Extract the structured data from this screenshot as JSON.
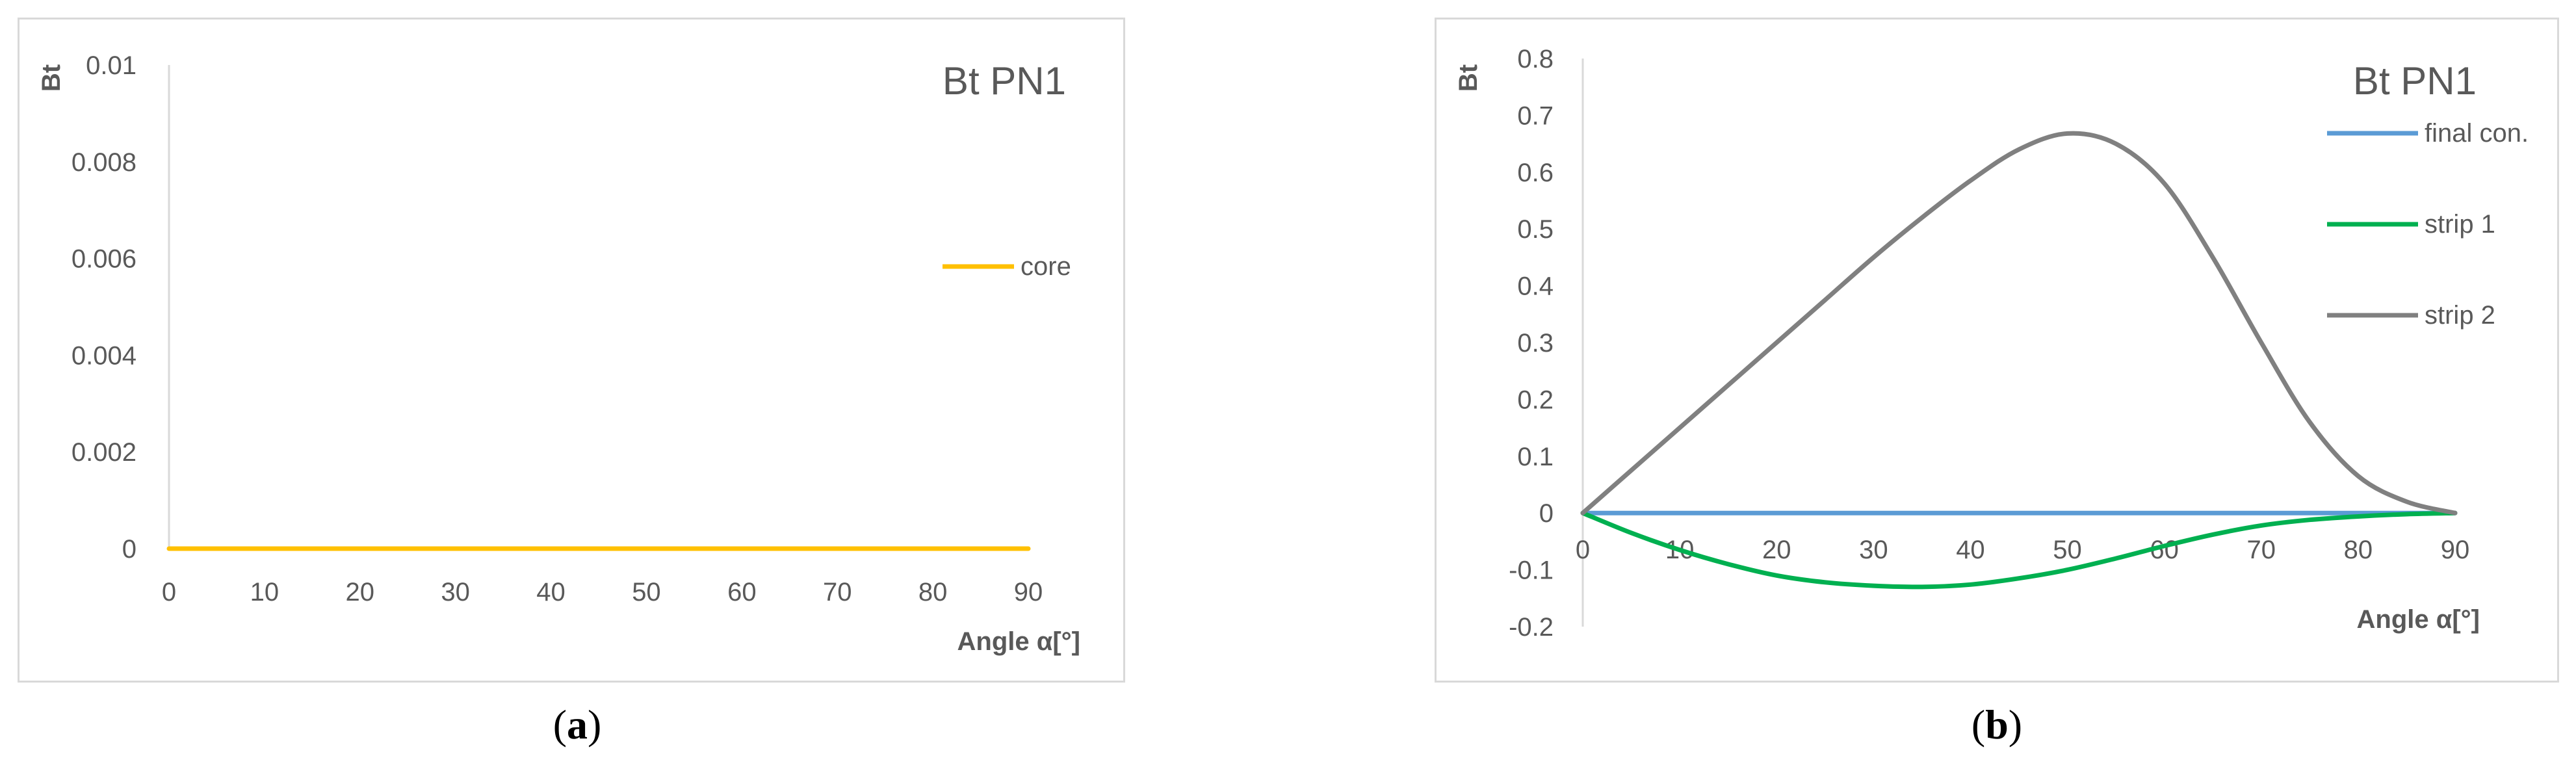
{
  "chart_data": [
    {
      "type": "line",
      "title": "Bt PN1",
      "xlabel": "Angle α[°]",
      "ylabel": "Bt",
      "xlim": [
        0,
        90
      ],
      "ylim": [
        0,
        0.01
      ],
      "x_ticks": [
        "0",
        "10",
        "20",
        "30",
        "40",
        "50",
        "60",
        "70",
        "80",
        "90"
      ],
      "y_ticks": [
        "0",
        "0.002",
        "0.004",
        "0.006",
        "0.008",
        "0.01"
      ],
      "legend": "right",
      "grid": false,
      "series": [
        {
          "name": "core",
          "color": "#ffc000",
          "x": [
            0,
            10,
            20,
            30,
            40,
            50,
            60,
            70,
            80,
            90
          ],
          "y": [
            0,
            0,
            0,
            0,
            0,
            0,
            0,
            0,
            0,
            0
          ]
        }
      ]
    },
    {
      "type": "line",
      "title": "Bt PN1",
      "xlabel": "Angle α[°]",
      "ylabel": "Bt",
      "xlim": [
        0,
        90
      ],
      "ylim": [
        -0.2,
        0.8
      ],
      "x_ticks": [
        "0",
        "10",
        "20",
        "30",
        "40",
        "50",
        "60",
        "70",
        "80",
        "90"
      ],
      "y_ticks": [
        "-0.2",
        "-0.1",
        "0",
        "0.1",
        "0.2",
        "0.3",
        "0.4",
        "0.5",
        "0.6",
        "0.7",
        "0.8"
      ],
      "legend": "right",
      "grid": false,
      "series": [
        {
          "name": "final con.",
          "color": "#5b9bd5",
          "x": [
            0,
            10,
            20,
            30,
            40,
            50,
            60,
            70,
            80,
            90
          ],
          "y": [
            0,
            0,
            0,
            0,
            0,
            0,
            0,
            0,
            0,
            0
          ]
        },
        {
          "name": "strip 1",
          "color": "#00b050",
          "x": [
            0,
            5,
            10,
            15,
            20,
            25,
            30,
            35,
            40,
            45,
            50,
            55,
            60,
            65,
            70,
            75,
            80,
            85,
            90
          ],
          "y": [
            0,
            -0.035,
            -0.065,
            -0.09,
            -0.11,
            -0.122,
            -0.128,
            -0.13,
            -0.126,
            -0.115,
            -0.1,
            -0.08,
            -0.058,
            -0.038,
            -0.022,
            -0.012,
            -0.006,
            -0.002,
            0
          ]
        },
        {
          "name": "strip 2",
          "color": "#808080",
          "x": [
            0,
            5,
            10,
            15,
            20,
            25,
            30,
            35,
            40,
            45,
            50,
            55,
            60,
            65,
            70,
            75,
            80,
            85,
            90
          ],
          "y": [
            0,
            0.075,
            0.15,
            0.225,
            0.3,
            0.375,
            0.45,
            0.52,
            0.585,
            0.64,
            0.668,
            0.65,
            0.58,
            0.45,
            0.3,
            0.16,
            0.065,
            0.02,
            0
          ]
        }
      ]
    }
  ],
  "captions": [
    "a",
    "b"
  ]
}
